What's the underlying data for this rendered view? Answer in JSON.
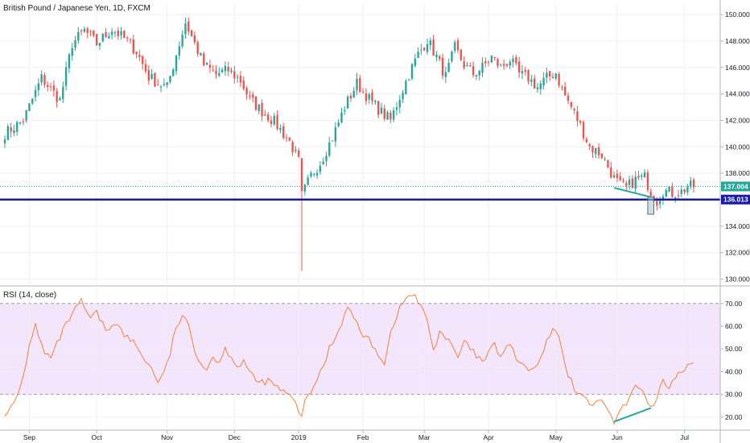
{
  "chart_data": [
    {
      "type": "candlestick",
      "title": "British Pound / Japanese Yen, 1D, FXCM",
      "ylim": [
        129.6,
        150.8
      ],
      "y_ticks": [
        130.0,
        132.0,
        134.0,
        136.0,
        138.0,
        140.0,
        142.0,
        144.0,
        146.0,
        148.0,
        150.0
      ],
      "y_tick_labels": [
        "130.000",
        "132.000",
        "134.000",
        "136.000",
        "138.000",
        "140.000",
        "142.000",
        "144.000",
        "146.000",
        "148.000",
        "150.000"
      ],
      "grid": true,
      "x_labels": [
        "Sep",
        "Oct",
        "Nov",
        "Dec",
        "2019",
        "Feb",
        "Mar",
        "Apr",
        "May",
        "Jun",
        "Jul"
      ],
      "x_label_bars": [
        8,
        30,
        53,
        75,
        96,
        117,
        137,
        158,
        180,
        200,
        222
      ],
      "total_bars": 226,
      "close_path": [
        [
          0,
          141.0
        ],
        [
          6,
          142.0
        ],
        [
          12,
          145.2
        ],
        [
          18,
          143.5
        ],
        [
          22,
          147.8
        ],
        [
          26,
          148.8
        ],
        [
          30,
          147.8
        ],
        [
          35,
          148.9
        ],
        [
          40,
          148.0
        ],
        [
          43,
          147.2
        ],
        [
          47,
          145.3
        ],
        [
          50,
          144.8
        ],
        [
          53,
          144.5
        ],
        [
          56,
          147.0
        ],
        [
          59,
          149.4
        ],
        [
          62,
          147.8
        ],
        [
          65,
          146.2
        ],
        [
          69,
          145.5
        ],
        [
          73,
          145.8
        ],
        [
          77,
          145.0
        ],
        [
          80,
          143.6
        ],
        [
          84,
          142.7
        ],
        [
          88,
          141.9
        ],
        [
          93,
          140.4
        ],
        [
          96,
          138.9
        ],
        [
          97,
          136.3
        ],
        [
          100,
          137.8
        ],
        [
          103,
          138.8
        ],
        [
          107,
          140.7
        ],
        [
          111,
          143.0
        ],
        [
          115,
          144.8
        ],
        [
          119,
          143.6
        ],
        [
          123,
          142.6
        ],
        [
          126,
          142.0
        ],
        [
          129,
          143.8
        ],
        [
          132,
          145.5
        ],
        [
          135,
          147.0
        ],
        [
          138,
          148.1
        ],
        [
          141,
          146.8
        ],
        [
          144,
          145.3
        ],
        [
          147,
          147.5
        ],
        [
          150,
          146.2
        ],
        [
          153,
          145.5
        ],
        [
          156,
          146.0
        ],
        [
          159,
          146.8
        ],
        [
          162,
          146.0
        ],
        [
          165,
          146.6
        ],
        [
          168,
          145.5
        ],
        [
          171,
          145.2
        ],
        [
          174,
          144.5
        ],
        [
          177,
          145.2
        ],
        [
          180,
          145.6
        ],
        [
          182,
          144.3
        ],
        [
          185,
          143.0
        ],
        [
          188,
          141.6
        ],
        [
          191,
          140.0
        ],
        [
          195,
          139.4
        ],
        [
          199,
          137.6
        ],
        [
          201,
          137.1
        ],
        [
          203,
          136.9
        ],
        [
          206,
          137.5
        ],
        [
          209,
          137.7
        ],
        [
          211,
          136.6
        ],
        [
          213,
          135.9
        ],
        [
          215,
          136.7
        ],
        [
          218,
          136.5
        ],
        [
          221,
          136.6
        ],
        [
          223,
          137.0
        ]
      ],
      "spike_low": {
        "bar": 97,
        "value": 130.6
      },
      "current_price": 137.004,
      "current_price_label": "137.004",
      "horizontal_level": 136.013,
      "horizontal_level_label": "136.013",
      "divergence_line": {
        "from": [
          199,
          136.9
        ],
        "to": [
          211,
          136.2
        ]
      },
      "highlight_box": {
        "from_bar": 210,
        "to_bar": 212,
        "from_value": 134.9,
        "to_value": 136.2
      },
      "colors": {
        "up": "#26a69a",
        "down": "#ef5350",
        "level": "#1a1aa8",
        "divergence": "#26a69a",
        "price_tag": "#26a69a"
      }
    },
    {
      "type": "line",
      "title": "RSI (14, close)",
      "ylim": [
        15,
        77
      ],
      "y_ticks": [
        20,
        30,
        40,
        50,
        60,
        70
      ],
      "y_tick_labels": [
        "20.00",
        "30.00",
        "40.00",
        "50.00",
        "60.00",
        "70.00"
      ],
      "band": [
        30,
        70
      ],
      "grid": true,
      "series": [
        {
          "values": [
            [
              0,
              22
            ],
            [
              2,
              24
            ],
            [
              4,
              28
            ],
            [
              6,
              38
            ],
            [
              8,
              51
            ],
            [
              10,
              62
            ],
            [
              11,
              55
            ],
            [
              13,
              48
            ],
            [
              15,
              46
            ],
            [
              17,
              52
            ],
            [
              19,
              58
            ],
            [
              21,
              63
            ],
            [
              23,
              67
            ],
            [
              25,
              71
            ],
            [
              26,
              68
            ],
            [
              28,
              63
            ],
            [
              30,
              66
            ],
            [
              33,
              58
            ],
            [
              36,
              62
            ],
            [
              39,
              56
            ],
            [
              42,
              53
            ],
            [
              45,
              47
            ],
            [
              48,
              41
            ],
            [
              50,
              36
            ],
            [
              52,
              39
            ],
            [
              54,
              48
            ],
            [
              56,
              60
            ],
            [
              58,
              64
            ],
            [
              60,
              60
            ],
            [
              62,
              50
            ],
            [
              64,
              44
            ],
            [
              66,
              41
            ],
            [
              68,
              47
            ],
            [
              70,
              44
            ],
            [
              72,
              50
            ],
            [
              74,
              47
            ],
            [
              76,
              42
            ],
            [
              78,
              45
            ],
            [
              80,
              39
            ],
            [
              83,
              35
            ],
            [
              86,
              36
            ],
            [
              89,
              33
            ],
            [
              92,
              30
            ],
            [
              94,
              28
            ],
            [
              96,
              23
            ],
            [
              97,
              21
            ],
            [
              98,
              26
            ],
            [
              100,
              31
            ],
            [
              102,
              37
            ],
            [
              104,
              42
            ],
            [
              106,
              51
            ],
            [
              108,
              55
            ],
            [
              110,
              62
            ],
            [
              112,
              68
            ],
            [
              114,
              64
            ],
            [
              116,
              58
            ],
            [
              118,
              55
            ],
            [
              120,
              52
            ],
            [
              122,
              48
            ],
            [
              124,
              44
            ],
            [
              126,
              57
            ],
            [
              128,
              65
            ],
            [
              130,
              70
            ],
            [
              132,
              74
            ],
            [
              134,
              73
            ],
            [
              136,
              68
            ],
            [
              138,
              63
            ],
            [
              140,
              49
            ],
            [
              142,
              58
            ],
            [
              144,
              55
            ],
            [
              146,
              51
            ],
            [
              148,
              46
            ],
            [
              150,
              53
            ],
            [
              152,
              50
            ],
            [
              154,
              47
            ],
            [
              156,
              44
            ],
            [
              158,
              48
            ],
            [
              160,
              52
            ],
            [
              162,
              46
            ],
            [
              164,
              52
            ],
            [
              166,
              49
            ],
            [
              168,
              44
            ],
            [
              170,
              42
            ],
            [
              172,
              40
            ],
            [
              174,
              43
            ],
            [
              176,
              49
            ],
            [
              178,
              56
            ],
            [
              180,
              59
            ],
            [
              182,
              49
            ],
            [
              184,
              39
            ],
            [
              186,
              33
            ],
            [
              188,
              30
            ],
            [
              190,
              27
            ],
            [
              192,
              26
            ],
            [
              194,
              28
            ],
            [
              196,
              24
            ],
            [
              198,
              21
            ],
            [
              199,
              18
            ],
            [
              201,
              22
            ],
            [
              203,
              26
            ],
            [
              205,
              31
            ],
            [
              207,
              34
            ],
            [
              209,
              30
            ],
            [
              211,
              24
            ],
            [
              213,
              28
            ],
            [
              215,
              36
            ],
            [
              217,
              31
            ],
            [
              219,
              38
            ],
            [
              221,
              40
            ],
            [
              223,
              43
            ]
          ]
        }
      ],
      "divergence_line": {
        "from": [
          199,
          18
        ],
        "to": [
          211,
          24
        ]
      },
      "colors": {
        "line": "#f5803e",
        "band_fill": "#f3e5fb",
        "band_border": "#9e9e9e",
        "divergence": "#26a69a"
      }
    }
  ]
}
